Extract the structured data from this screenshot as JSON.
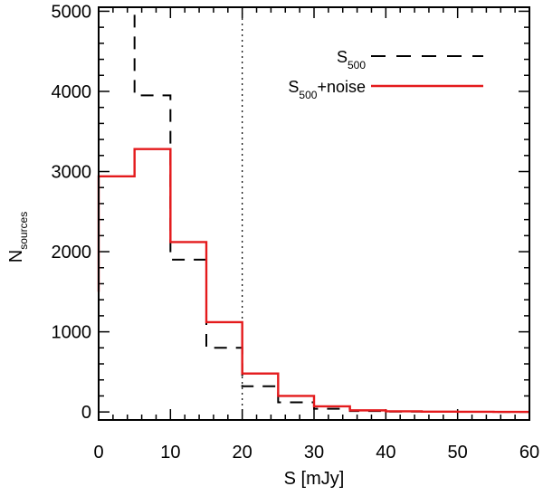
{
  "chart_data": {
    "type": "line",
    "style": "histogram-step",
    "xlabel": "S [mJy]",
    "ylabel": {
      "main": "N",
      "subscript": "sources"
    },
    "xlim": [
      0,
      60
    ],
    "ylim": [
      -100,
      5050
    ],
    "xticks": [
      0,
      10,
      20,
      30,
      40,
      50,
      60
    ],
    "yticks": [
      0,
      1000,
      2000,
      3000,
      4000,
      5000
    ],
    "bin_edges": [
      0,
      5,
      10,
      15,
      20,
      25,
      30,
      35,
      40,
      45,
      50,
      55,
      60
    ],
    "reference_line": {
      "x": 20,
      "style": "dotted"
    },
    "series": [
      {
        "name": "S500",
        "legend": {
          "main": "S",
          "subscript": "500",
          "suffix": ""
        },
        "line_style": "dashed",
        "color": "#000000",
        "values": [
          5100,
          3950,
          1900,
          800,
          320,
          120,
          40,
          12,
          4,
          2,
          1,
          0
        ]
      },
      {
        "name": "S500+noise",
        "legend": {
          "main": "S",
          "subscript": "500",
          "suffix": "+noise"
        },
        "line_style": "solid",
        "color": "#e41a1c",
        "start_value": 1500,
        "values": [
          2940,
          3280,
          2120,
          1120,
          480,
          200,
          70,
          20,
          8,
          4,
          2,
          1
        ]
      }
    ]
  }
}
